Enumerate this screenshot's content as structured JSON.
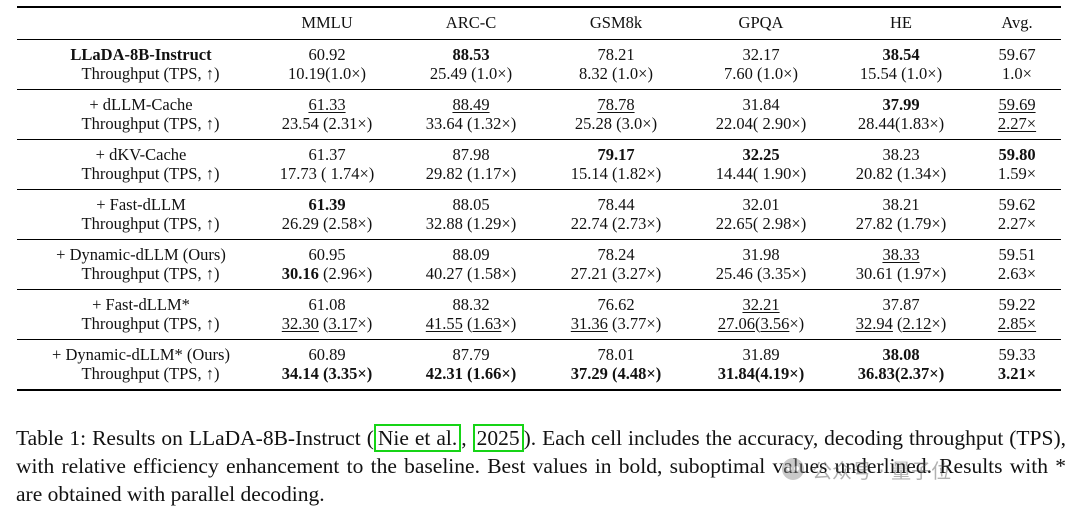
{
  "table": {
    "columns": [
      "",
      "MMLU",
      "ARC-C",
      "GSM8k",
      "GPQA",
      "HE",
      "Avg."
    ],
    "rows": [
      {
        "method": "LLaDA-8B-Instruct",
        "metric_label": "Throughput (TPS, ↑)",
        "cells": [
          {
            "acc": "60.92",
            "tp": "10.19(1.0×)"
          },
          {
            "acc": "88.53",
            "tp": "25.49 (1.0×)"
          },
          {
            "acc": "78.21",
            "tp": "8.32 (1.0×)"
          },
          {
            "acc": "32.17",
            "tp": "7.60 (1.0×)"
          },
          {
            "acc": "38.54",
            "tp": "15.54 (1.0×)"
          },
          {
            "acc": "59.67",
            "tp": "1.0×"
          }
        ]
      },
      {
        "method": "+ dLLM-Cache",
        "metric_label": "Throughput (TPS, ↑)",
        "cells": [
          {
            "acc": "61.33",
            "tp": "23.54 (2.31×)"
          },
          {
            "acc": "88.49",
            "tp": "33.64 (1.32×)"
          },
          {
            "acc": "78.78",
            "tp": "25.28 (3.0×)"
          },
          {
            "acc": "31.84",
            "tp": "22.04( 2.90×)"
          },
          {
            "acc": "37.99",
            "tp": "28.44(1.83×)"
          },
          {
            "acc": "59.69",
            "tp": "2.27×"
          }
        ]
      },
      {
        "method": "+ dKV-Cache",
        "metric_label": "Throughput (TPS, ↑)",
        "cells": [
          {
            "acc": "61.37",
            "tp": "17.73 ( 1.74×)"
          },
          {
            "acc": "87.98",
            "tp": "29.82 (1.17×)"
          },
          {
            "acc": "79.17",
            "tp": "15.14 (1.82×)"
          },
          {
            "acc": "32.25",
            "tp": "14.44( 1.90×)"
          },
          {
            "acc": "38.23",
            "tp": "20.82 (1.34×)"
          },
          {
            "acc": "59.80",
            "tp": "1.59×"
          }
        ]
      },
      {
        "method": "+ Fast-dLLM",
        "metric_label": "Throughput (TPS, ↑)",
        "cells": [
          {
            "acc": "61.39",
            "tp": "26.29 (2.58×)"
          },
          {
            "acc": "88.05",
            "tp": "32.88 (1.29×)"
          },
          {
            "acc": "78.44",
            "tp": "22.74 (2.73×)"
          },
          {
            "acc": "32.01",
            "tp": "22.65( 2.98×)"
          },
          {
            "acc": "38.21",
            "tp": "27.82 (1.79×)"
          },
          {
            "acc": "59.62",
            "tp": "2.27×"
          }
        ]
      },
      {
        "method": "+ Dynamic-dLLM (Ours)",
        "metric_label": "Throughput (TPS, ↑)",
        "cells": [
          {
            "acc": "60.95",
            "tp_a": "30.16",
            "tp_b": " (2.96×)"
          },
          {
            "acc": "88.09",
            "tp": "40.27 (1.58×)"
          },
          {
            "acc": "78.24",
            "tp": "27.21 (3.27×)"
          },
          {
            "acc": "31.98",
            "tp": "25.46 (3.35×)"
          },
          {
            "acc": "38.33",
            "tp": "30.61 (1.97×)"
          },
          {
            "acc": "59.51",
            "tp": "2.63×"
          }
        ]
      },
      {
        "method": "+ Fast-dLLM*",
        "metric_label": "Throughput (TPS, ↑)",
        "cells": [
          {
            "acc": "61.08",
            "tp_a": "32.30",
            "tp_b": "3.17"
          },
          {
            "acc": "88.32",
            "tp_a": "41.55",
            "tp_b": "1.63"
          },
          {
            "acc": "76.62",
            "tp_a": "31.36",
            "tp_b": "(3.77×)"
          },
          {
            "acc": "32.21",
            "tp_a": "27.06",
            "tp_b": "3.56"
          },
          {
            "acc": "37.87",
            "tp_a": "32.94",
            "tp_b": "2.12"
          },
          {
            "acc": "59.22",
            "tp": "2.85×"
          }
        ]
      },
      {
        "method": "+ Dynamic-dLLM* (Ours)",
        "metric_label": "Throughput (TPS, ↑)",
        "cells": [
          {
            "acc": "60.89",
            "tp": "34.14 (3.35×)"
          },
          {
            "acc": "87.79",
            "tp": "42.31 (1.66×)"
          },
          {
            "acc": "78.01",
            "tp": "37.29 (4.48×)"
          },
          {
            "acc": "31.89",
            "tp": "31.84(4.19×)"
          },
          {
            "acc": "38.08",
            "tp": "36.83(2.37×)"
          },
          {
            "acc": "59.33",
            "tp": "3.21×"
          }
        ]
      }
    ]
  },
  "caption": {
    "prefix": "Table 1: Results on LLaDA-8B-Instruct (",
    "cite_author": "Nie et al.",
    "sep": ", ",
    "cite_year": "2025",
    "suffix": "). Each cell includes the accuracy, decoding throughput (TPS), with relative efficiency enhancement to the baseline. Best values in bold, suboptimal values underlined. Results with * are obtained with parallel decoding."
  },
  "watermark": {
    "text": "公众号 · 量子位",
    "icon": "wechat-icon"
  },
  "colors": {
    "citation_box": "#16d416",
    "rule": "#000000"
  }
}
